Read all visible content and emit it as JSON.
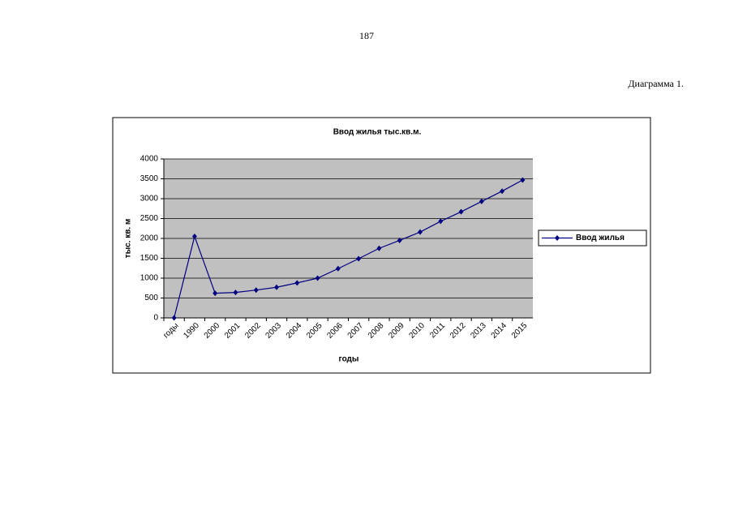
{
  "page_number": "187",
  "caption": "Диаграмма 1.",
  "chart_data": {
    "type": "line",
    "title": "Ввод  жилья тыс.кв.м.",
    "y_label": "тыс. кв. м",
    "x_label": "годы",
    "categories": [
      "годы",
      "1990",
      "2000",
      "2001",
      "2002",
      "2003",
      "2004",
      "2005",
      "2006",
      "2007",
      "2008",
      "2009",
      "2010",
      "2011",
      "2012",
      "2013",
      "2014",
      "2015"
    ],
    "series": [
      {
        "name": "Ввод  жилья",
        "color": "#000080",
        "values": [
          0,
          2050,
          620,
          640,
          700,
          770,
          880,
          1000,
          1240,
          1490,
          1750,
          1950,
          2160,
          2430,
          2670,
          2930,
          3190,
          3470
        ]
      }
    ],
    "ylim": [
      0,
      4000
    ],
    "yticks": [
      0,
      500,
      1000,
      1500,
      2000,
      2500,
      3000,
      3500,
      4000
    ],
    "grid": true
  }
}
